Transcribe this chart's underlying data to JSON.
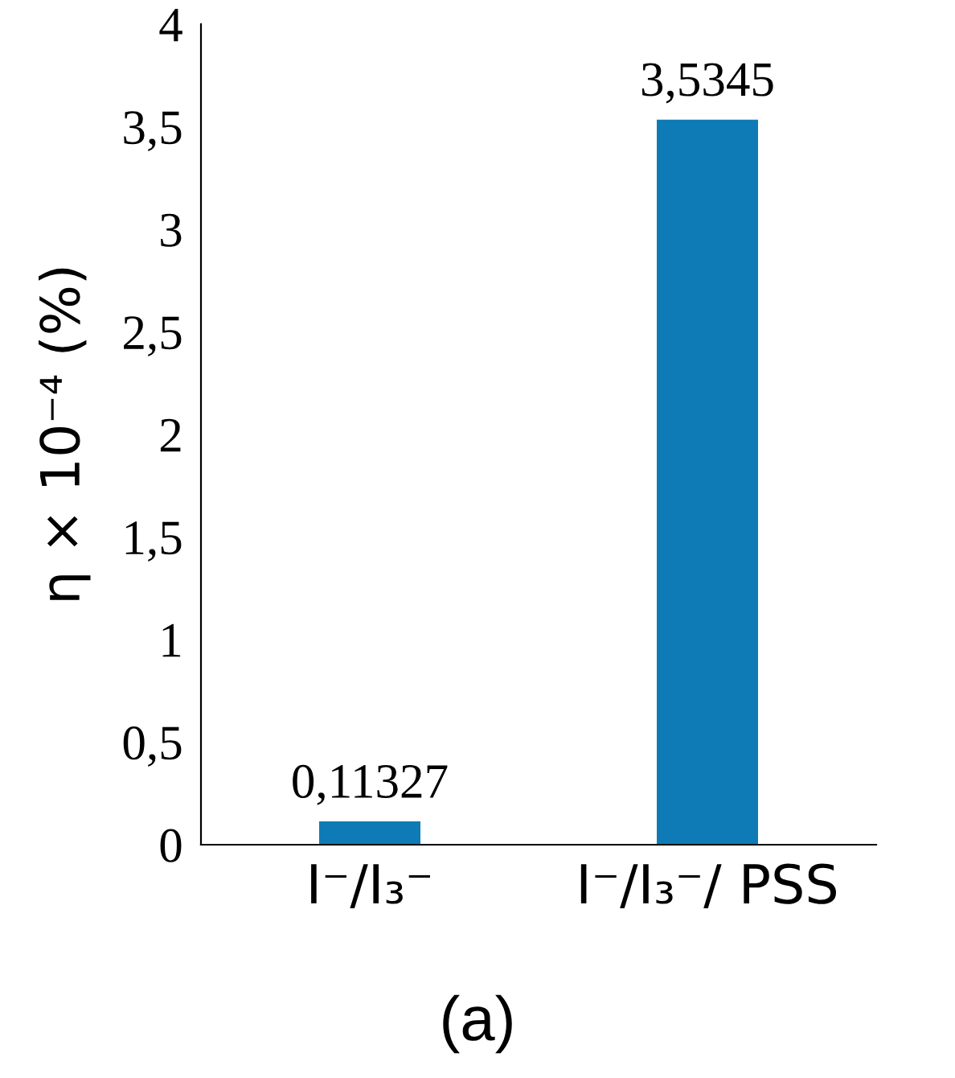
{
  "chart_data": {
    "type": "bar",
    "categories": [
      "I⁻/I₃⁻",
      "I⁻/I₃⁻/ PSS"
    ],
    "values": [
      0.11327,
      3.5345
    ],
    "value_labels": [
      "0,11327",
      "3,5345"
    ],
    "color": "#0f7bb6",
    "ylabel": "η × 10⁻⁴ (%)",
    "ylim": [
      0,
      4
    ],
    "yticks": [
      0,
      {
        "value": 0.5,
        "label": "0,5"
      },
      1,
      {
        "value": 1.5,
        "label": "1,5"
      },
      2,
      {
        "value": 2.5,
        "label": "2,5"
      },
      3,
      {
        "value": 3.5,
        "label": "3,5"
      },
      4
    ],
    "annotations": [
      "(a)"
    ],
    "grid": false,
    "legend": false
  }
}
